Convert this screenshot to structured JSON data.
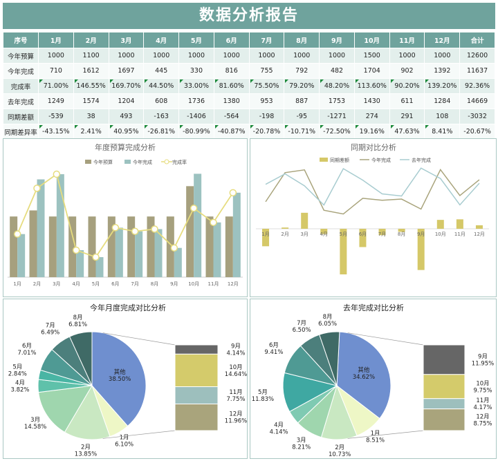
{
  "title": "数据分析报告",
  "table": {
    "headers": [
      "序号",
      "1月",
      "2月",
      "3月",
      "4月",
      "5月",
      "6月",
      "7月",
      "8月",
      "9月",
      "10月",
      "11月",
      "12月",
      "合计"
    ],
    "rows": [
      {
        "label": "今年预算",
        "values": [
          "1000",
          "1100",
          "1000",
          "1000",
          "1000",
          "1000",
          "1000",
          "1000",
          "1000",
          "1500",
          "1000",
          "1000",
          "12600"
        ],
        "flag": false
      },
      {
        "label": "今年完成",
        "values": [
          "710",
          "1612",
          "1697",
          "445",
          "330",
          "816",
          "755",
          "792",
          "482",
          "1704",
          "902",
          "1392",
          "11637"
        ],
        "flag": false
      },
      {
        "label": "完成率",
        "values": [
          "71.00%",
          "146.55%",
          "169.70%",
          "44.50%",
          "33.00%",
          "81.60%",
          "75.50%",
          "79.20%",
          "48.20%",
          "113.60%",
          "90.20%",
          "139.20%",
          "92.36%"
        ],
        "flag": true
      },
      {
        "label": "去年完成",
        "values": [
          "1249",
          "1574",
          "1204",
          "608",
          "1736",
          "1380",
          "953",
          "887",
          "1753",
          "1430",
          "611",
          "1284",
          "14669"
        ],
        "flag": false
      },
      {
        "label": "同期差额",
        "values": [
          "-539",
          "38",
          "493",
          "-163",
          "-1406",
          "-564",
          "-198",
          "-95",
          "-1271",
          "274",
          "291",
          "108",
          "-3032"
        ],
        "flag": false
      },
      {
        "label": "同期差异率",
        "values": [
          "-43.15%",
          "2.41%",
          "40.95%",
          "-26.81%",
          "-80.99%",
          "-40.87%",
          "-20.78%",
          "-10.71%",
          "-72.50%",
          "19.16%",
          "47.63%",
          "8.41%",
          "-20.67%"
        ],
        "flag": true
      }
    ]
  },
  "colors": {
    "header": "#6fa39d",
    "budget": "#a6a07e",
    "done": "#9cc2c0",
    "rate": "#e6dc7e",
    "diff": "#d5c868",
    "line_this": "#a9a47c",
    "line_last": "#a8ccd0"
  },
  "chart_data": [
    {
      "type": "bar",
      "title": "年度预算完成分析",
      "categories": [
        "1月",
        "2月",
        "3月",
        "4月",
        "5月",
        "6月",
        "7月",
        "8月",
        "9月",
        "10月",
        "11月",
        "12月"
      ],
      "series": [
        {
          "name": "今年预算",
          "kind": "bar",
          "values": [
            1000,
            1100,
            1000,
            1000,
            1000,
            1000,
            1000,
            1000,
            1000,
            1500,
            1000,
            1000
          ]
        },
        {
          "name": "今年完成",
          "kind": "bar",
          "values": [
            710,
            1612,
            1697,
            445,
            330,
            816,
            755,
            792,
            482,
            1704,
            902,
            1392
          ]
        },
        {
          "name": "完成率",
          "kind": "line",
          "values": [
            71.0,
            146.55,
            169.7,
            44.5,
            33.0,
            81.6,
            75.5,
            79.2,
            48.2,
            113.6,
            90.2,
            139.2
          ]
        }
      ],
      "ylim": [
        0,
        1800
      ],
      "y2lim": [
        0,
        180
      ],
      "legend": "top"
    },
    {
      "type": "bar",
      "title": "同期对比分析",
      "categories": [
        "1月",
        "2月",
        "3月",
        "4月",
        "5月",
        "6月",
        "7月",
        "8月",
        "9月",
        "10月",
        "11月",
        "12月"
      ],
      "series": [
        {
          "name": "同期差额",
          "kind": "bar",
          "values": [
            -539,
            38,
            493,
            -163,
            -1406,
            -564,
            -198,
            -95,
            -1271,
            274,
            291,
            108
          ]
        },
        {
          "name": "今年完成",
          "kind": "line",
          "values": [
            710,
            1612,
            1697,
            445,
            330,
            816,
            755,
            792,
            482,
            1704,
            902,
            1392
          ]
        },
        {
          "name": "去年完成",
          "kind": "line",
          "values": [
            1249,
            1574,
            1204,
            608,
            1736,
            1380,
            953,
            887,
            1753,
            1430,
            611,
            1284
          ]
        }
      ],
      "legend": "top"
    },
    {
      "type": "pie",
      "title": "今年月度完成对比分析",
      "slices": [
        {
          "label": "其他",
          "value": "38.50%"
        },
        {
          "label": "1月",
          "value": "6.10%"
        },
        {
          "label": "2月",
          "value": "13.85%"
        },
        {
          "label": "3月",
          "value": "14.58%"
        },
        {
          "label": "4月",
          "value": "3.82%"
        },
        {
          "label": "5月",
          "value": "2.84%"
        },
        {
          "label": "6月",
          "value": "7.01%"
        },
        {
          "label": "7月",
          "value": "6.49%"
        },
        {
          "label": "8月",
          "value": "6.81%"
        }
      ],
      "others": [
        {
          "label": "9月",
          "value": "4.14%"
        },
        {
          "label": "10月",
          "value": "14.64%"
        },
        {
          "label": "11月",
          "value": "7.75%"
        },
        {
          "label": "12月",
          "value": "11.96%"
        }
      ]
    },
    {
      "type": "pie",
      "title": "去年完成对比分析",
      "slices": [
        {
          "label": "其他",
          "value": "34.62%"
        },
        {
          "label": "1月",
          "value": "8.51%"
        },
        {
          "label": "2月",
          "value": "10.73%"
        },
        {
          "label": "3月",
          "value": "8.21%"
        },
        {
          "label": "4月",
          "value": "4.14%"
        },
        {
          "label": "5月",
          "value": "11.83%"
        },
        {
          "label": "6月",
          "value": "9.41%"
        },
        {
          "label": "7月",
          "value": "6.50%"
        },
        {
          "label": "8月",
          "value": "6.05%"
        }
      ],
      "others": [
        {
          "label": "9月",
          "value": "11.95%"
        },
        {
          "label": "10月",
          "value": "9.75%"
        },
        {
          "label": "11月",
          "value": "4.17%"
        },
        {
          "label": "12月",
          "value": "8.75%"
        }
      ]
    }
  ]
}
